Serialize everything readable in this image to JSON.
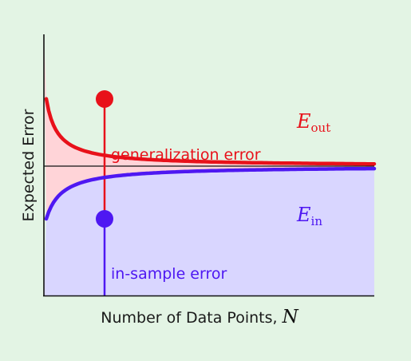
{
  "diagram": {
    "ylabel": "Expected Error",
    "xlabel": "Number of Data Points, ",
    "xlabel_symbol": "N",
    "curves": {
      "out": {
        "symbol": "E",
        "subscript": "out",
        "color": "#e8111a"
      },
      "in": {
        "symbol": "E",
        "subscript": "in",
        "color": "#4e18f2"
      }
    },
    "annotations": {
      "generalization": "generalization error",
      "in_sample": "in-sample error"
    },
    "colors": {
      "background": "#e3f4e4",
      "out_fill": "#ffd4d8",
      "in_fill": "#d9d6ff",
      "axis": "#111111"
    }
  }
}
